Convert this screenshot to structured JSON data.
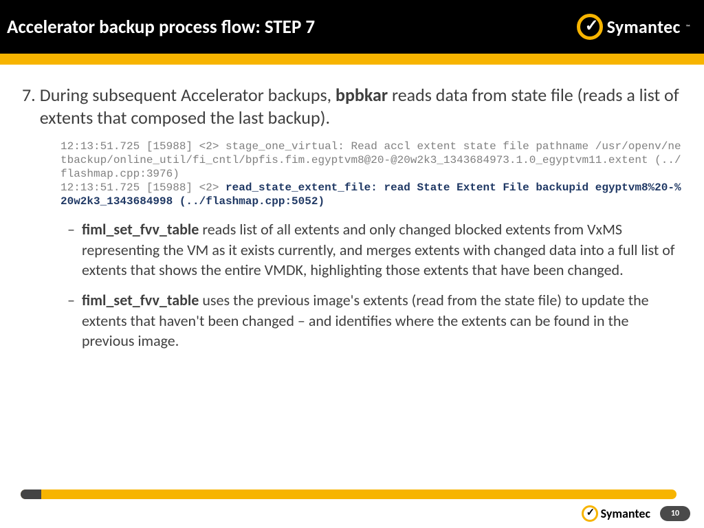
{
  "header": {
    "title": "Accelerator backup process flow: STEP 7",
    "brand": "Symantec",
    "tm": "™"
  },
  "content": {
    "item_number": "7.",
    "item_text_a": "During subsequent Accelerator backups, ",
    "item_text_bold": "bpbkar",
    "item_text_b": " reads data from state file (reads a list of extents that composed the last backup).",
    "code_plain": "12:13:51.725 [15988] <2> stage_one_virtual: Read accl extent state file pathname /usr/openv/netbackup/online_util/fi_cntl/bpfis.fim.egyptvm8@20-@20w2k3_1343684973.1.0_egyptvm11.extent (../flashmap.cpp:3976)\n12:13:51.725 [15988] <2> ",
    "code_bold": "read_state_extent_file: read State Extent File backupid egyptvm8%20-%20w2k3_1343684998 (../flashmap.cpp:5052)",
    "sub1_bold": "fiml_set_fvv_table",
    "sub1_text": " reads list of all extents and only changed blocked extents from VxMS representing the VM as it exists currently, and merges extents with changed data into a full list of extents that shows the entire VMDK, highlighting those extents that have been changed.",
    "sub2_bold": "fiml_set_fvv_table",
    "sub2_text": " uses the previous image's extents (read from the state file) to update the extents that haven't been changed – and identifies where the extents can be found in the previous image."
  },
  "footer": {
    "brand": "Symantec",
    "page": "10"
  },
  "colors": {
    "accent": "#f7b400",
    "header_bg": "#000000",
    "text": "#3f3f3f",
    "code_gray": "#808080",
    "code_bold": "#1f3864",
    "page_bg": "#4a4a4a"
  }
}
